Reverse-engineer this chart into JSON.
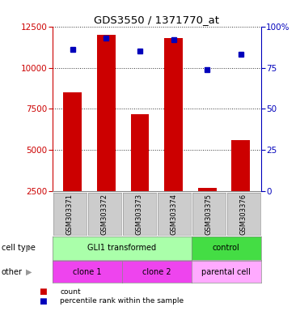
{
  "title": "GDS3550 / 1371770_at",
  "samples": [
    "GSM303371",
    "GSM303372",
    "GSM303373",
    "GSM303374",
    "GSM303375",
    "GSM303376"
  ],
  "counts": [
    8500,
    12000,
    7200,
    11800,
    2700,
    5600
  ],
  "percentile_ranks": [
    86,
    93,
    85,
    92,
    74,
    83
  ],
  "ylim_left": [
    2500,
    12500
  ],
  "ylim_right": [
    0,
    100
  ],
  "yticks_left": [
    2500,
    5000,
    7500,
    10000,
    12500
  ],
  "yticks_right": [
    0,
    25,
    50,
    75,
    100
  ],
  "ytick_right_labels": [
    "0",
    "25",
    "50",
    "75",
    "100%"
  ],
  "bar_color": "#cc0000",
  "dot_color": "#0000bb",
  "bar_width": 0.55,
  "cell_type_groups": [
    {
      "label": "GLI1 transformed",
      "cols": [
        0,
        1,
        2,
        3
      ],
      "color": "#aaffaa"
    },
    {
      "label": "control",
      "cols": [
        4,
        5
      ],
      "color": "#44dd44"
    }
  ],
  "other_groups": [
    {
      "label": "clone 1",
      "cols": [
        0,
        1
      ],
      "color": "#ee44ee"
    },
    {
      "label": "clone 2",
      "cols": [
        2,
        3
      ],
      "color": "#ee44ee"
    },
    {
      "label": "parental cell",
      "cols": [
        4,
        5
      ],
      "color": "#ffaaff"
    }
  ],
  "left_axis_color": "#cc0000",
  "right_axis_color": "#0000bb",
  "background_color": "#ffffff",
  "sample_bg_color": "#cccccc"
}
